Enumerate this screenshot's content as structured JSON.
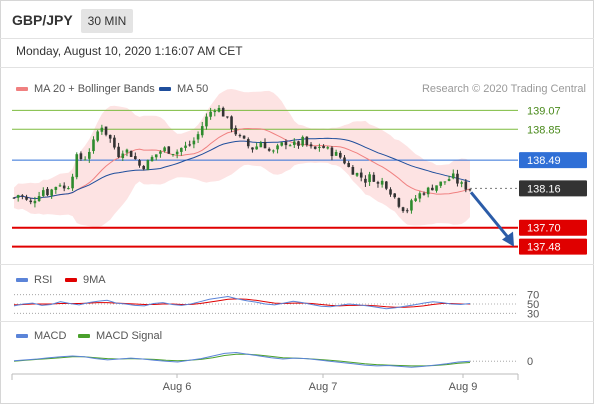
{
  "header": {
    "pair": "GBP/JPY",
    "timeframe": "30 MIN",
    "datetime": "Monday, August 10, 2020 1:16:07 AM CET"
  },
  "legends": {
    "ma20": "MA 20 + Bollinger Bands",
    "ma50": "MA 50",
    "credit": "Research © 2020 Trading Central",
    "rsi": "RSI",
    "rsi_ma": "9MA",
    "macd": "MACD",
    "macd_signal": "MACD Signal"
  },
  "colors": {
    "ma20": "#f08080",
    "ma50": "#1f4e9c",
    "band_fill": "#fde3e3",
    "up_candle": "#2e8b2e",
    "down_candle": "#333333",
    "resistance_green": "#7dbb3f",
    "pivot_blue": "#2f6fd6",
    "current": "#333333",
    "support_red": "#e00000",
    "arrow": "#2b5ca8",
    "rsi_line": "#5b84d8",
    "rsi_ma": "#e00000",
    "macd_line": "#5b84d8",
    "macd_signal": "#4aa02c"
  },
  "chart_data": [
    {
      "type": "candlestick",
      "title": "GBP/JPY 30 MIN",
      "x_labels": [
        "Aug 6",
        "Aug 7",
        "Aug 9"
      ],
      "ylim": [
        137.3,
        139.25
      ],
      "levels": [
        {
          "name": "resistance-2",
          "value": 139.07,
          "label": "139.07",
          "style": "green"
        },
        {
          "name": "resistance-1",
          "value": 138.85,
          "label": "138.85",
          "style": "green"
        },
        {
          "name": "pivot",
          "value": 138.49,
          "label": "138.49",
          "style": "blue"
        },
        {
          "name": "last-price",
          "value": 138.16,
          "label": "138.16",
          "style": "current"
        },
        {
          "name": "support-1",
          "value": 137.7,
          "label": "137.70",
          "style": "red"
        },
        {
          "name": "support-2",
          "value": 137.48,
          "label": "137.48",
          "style": "red"
        }
      ],
      "close_path": [
        138.05,
        138.1,
        138.02,
        137.98,
        138.08,
        138.15,
        138.1,
        138.18,
        138.22,
        138.12,
        138.3,
        138.55,
        138.48,
        138.6,
        138.72,
        138.92,
        138.8,
        138.7,
        138.55,
        138.62,
        138.58,
        138.5,
        138.4,
        138.45,
        138.52,
        138.58,
        138.62,
        138.6,
        138.58,
        138.63,
        138.65,
        138.7,
        138.8,
        138.95,
        139.05,
        139.12,
        139.05,
        138.95,
        138.85,
        138.75,
        138.7,
        138.62,
        138.65,
        138.72,
        138.6,
        138.58,
        138.65,
        138.7,
        138.68,
        138.66,
        138.72,
        138.64,
        138.6,
        138.66,
        138.62,
        138.58,
        138.55,
        138.5,
        138.4,
        138.35,
        138.3,
        138.25,
        138.32,
        138.2,
        138.25,
        138.15,
        138.05,
        137.95,
        137.9,
        138.0,
        138.08,
        138.12,
        138.15,
        138.2,
        138.22,
        138.26,
        138.3,
        138.22,
        138.18,
        138.16
      ],
      "arrow": {
        "from": 138.16,
        "to": 137.48
      }
    },
    {
      "type": "line",
      "title": "RSI",
      "series": [
        {
          "name": "RSI"
        },
        {
          "name": "9MA"
        }
      ],
      "ylim": [
        20,
        80
      ],
      "levels": [
        {
          "value": 70,
          "label": "70"
        },
        {
          "value": 50,
          "label": "50"
        },
        {
          "value": 30,
          "label": "30"
        }
      ],
      "rsi_values": [
        46,
        50,
        52,
        47,
        49,
        55,
        51,
        48,
        53,
        56,
        58,
        52,
        50,
        47,
        46,
        51,
        53,
        49,
        47,
        50,
        55,
        60,
        63,
        66,
        61,
        57,
        54,
        50,
        48,
        52,
        56,
        53,
        49,
        45,
        44,
        47,
        50,
        48,
        46,
        43,
        40,
        42,
        45,
        48,
        52,
        55,
        53,
        50,
        49,
        51
      ],
      "ma_values": [
        48,
        49,
        50,
        50,
        50,
        51,
        51,
        51,
        52,
        53,
        53,
        52,
        51,
        50,
        49,
        49,
        50,
        50,
        49,
        49,
        51,
        54,
        57,
        60,
        61,
        60,
        58,
        55,
        52,
        51,
        52,
        52,
        51,
        49,
        47,
        46,
        47,
        47,
        47,
        46,
        44,
        43,
        43,
        44,
        46,
        49,
        51,
        51,
        50,
        50
      ]
    },
    {
      "type": "line",
      "title": "MACD",
      "series": [
        {
          "name": "MACD"
        },
        {
          "name": "MACD Signal"
        }
      ],
      "levels": [
        {
          "value": 0,
          "label": "0"
        }
      ],
      "macd_values": [
        0.01,
        0.03,
        0.05,
        0.08,
        0.1,
        0.12,
        0.1,
        0.06,
        0.03,
        0.05,
        0.07,
        0.05,
        0.02,
        0.0,
        -0.02,
        0.02,
        0.06,
        0.12,
        0.18,
        0.2,
        0.16,
        0.12,
        0.08,
        0.05,
        0.07,
        0.06,
        0.03,
        0.0,
        -0.03,
        -0.06,
        -0.09,
        -0.11,
        -0.1,
        -0.12,
        -0.14,
        -0.12,
        -0.09,
        -0.06,
        -0.02,
        0.0
      ],
      "signal_values": [
        0.0,
        0.02,
        0.04,
        0.06,
        0.08,
        0.1,
        0.1,
        0.08,
        0.06,
        0.05,
        0.06,
        0.05,
        0.04,
        0.02,
        0.01,
        0.02,
        0.04,
        0.08,
        0.13,
        0.16,
        0.16,
        0.14,
        0.11,
        0.08,
        0.07,
        0.06,
        0.04,
        0.02,
        0.0,
        -0.03,
        -0.06,
        -0.08,
        -0.09,
        -0.1,
        -0.11,
        -0.11,
        -0.1,
        -0.08,
        -0.05,
        -0.03
      ],
      "ylim": [
        -0.25,
        0.35
      ]
    }
  ]
}
